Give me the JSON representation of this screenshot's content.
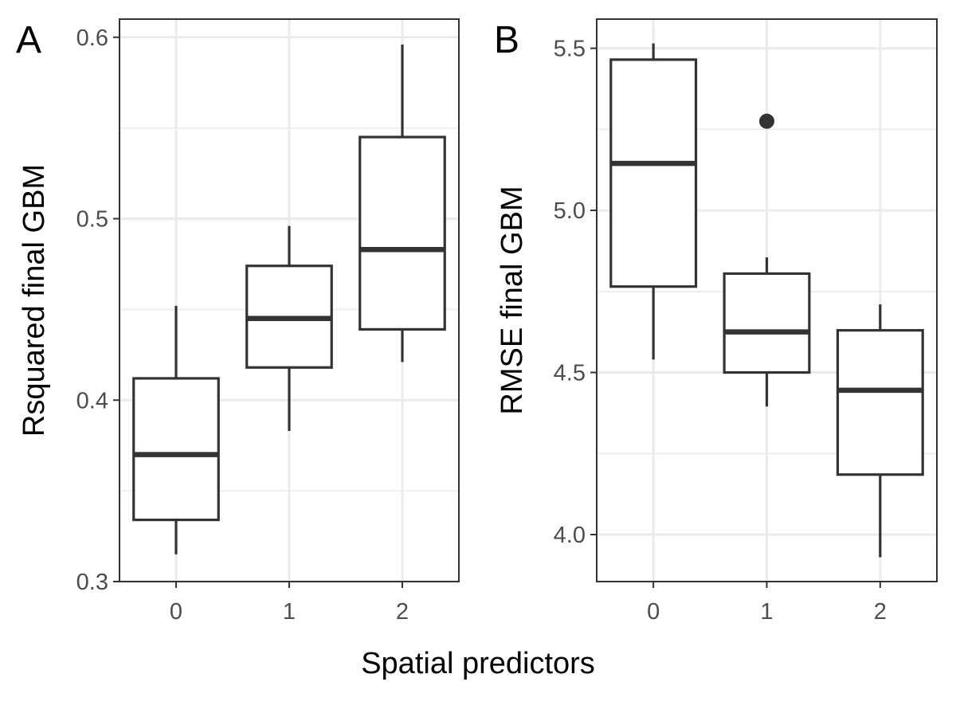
{
  "figure": {
    "shared_xlabel": "Spatial predictors"
  },
  "chart_data": [
    {
      "type": "boxplot",
      "panel_label": "A",
      "ylabel": "Rsquared final GBM",
      "xlabel": "",
      "categories": [
        "0",
        "1",
        "2"
      ],
      "ylim": [
        0.3,
        0.61
      ],
      "yticks": [
        0.3,
        0.4,
        0.5,
        0.6
      ],
      "ytick_labels": [
        "0.3",
        "0.4",
        "0.5",
        "0.6"
      ],
      "y_minor": [
        0.35,
        0.45,
        0.55
      ],
      "grid": true,
      "boxes": [
        {
          "category": "0",
          "min": 0.315,
          "q1": 0.334,
          "median": 0.37,
          "q3": 0.412,
          "max": 0.452,
          "outliers": []
        },
        {
          "category": "1",
          "min": 0.383,
          "q1": 0.418,
          "median": 0.445,
          "q3": 0.474,
          "max": 0.496,
          "outliers": []
        },
        {
          "category": "2",
          "min": 0.421,
          "q1": 0.439,
          "median": 0.483,
          "q3": 0.545,
          "max": 0.596,
          "outliers": []
        }
      ]
    },
    {
      "type": "boxplot",
      "panel_label": "B",
      "ylabel": "RMSE final GBM",
      "xlabel": "",
      "categories": [
        "0",
        "1",
        "2"
      ],
      "ylim": [
        3.855,
        5.59
      ],
      "yticks": [
        4.0,
        4.5,
        5.0,
        5.5
      ],
      "ytick_labels": [
        "4.0",
        "4.5",
        "5.0",
        "5.5"
      ],
      "y_minor": [
        4.25,
        4.75,
        5.25
      ],
      "grid": true,
      "boxes": [
        {
          "category": "0",
          "min": 4.54,
          "q1": 4.765,
          "median": 5.145,
          "q3": 5.465,
          "max": 5.515,
          "outliers": []
        },
        {
          "category": "1",
          "min": 4.395,
          "q1": 4.5,
          "median": 4.625,
          "q3": 4.805,
          "max": 4.855,
          "outliers": [
            5.275
          ]
        },
        {
          "category": "2",
          "min": 3.93,
          "q1": 4.185,
          "median": 4.445,
          "q3": 4.63,
          "max": 4.71,
          "outliers": []
        }
      ]
    }
  ]
}
